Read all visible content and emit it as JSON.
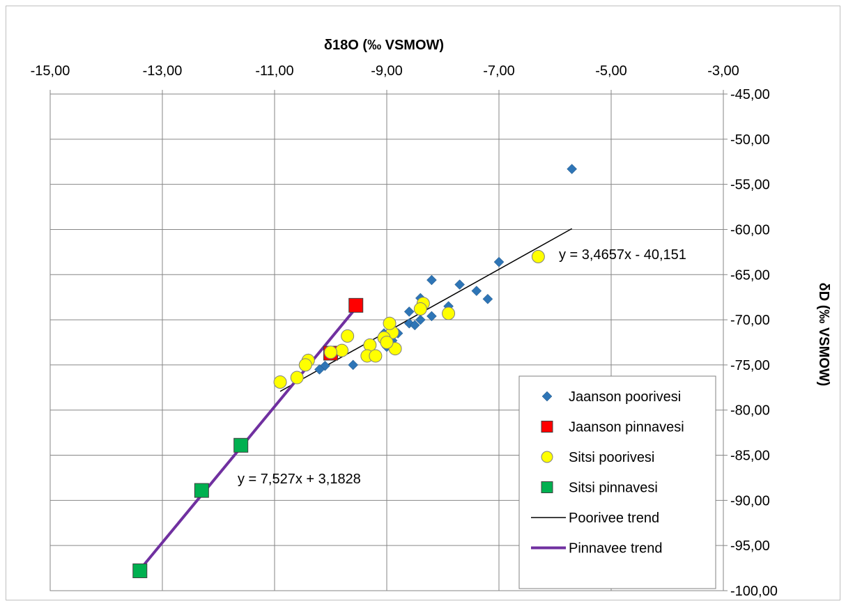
{
  "chart_data": {
    "type": "scatter",
    "title": "",
    "xlabel": "δ18O (‰ VSMOW)",
    "ylabel": "δD (‰ VSMOW)",
    "xlim": [
      -15,
      -3
    ],
    "ylim": [
      -100,
      -45
    ],
    "x_ticks": [
      -15,
      -13,
      -11,
      -9,
      -7,
      -5,
      -3
    ],
    "y_ticks": [
      -45,
      -50,
      -55,
      -60,
      -65,
      -70,
      -75,
      -80,
      -85,
      -90,
      -95,
      -100
    ],
    "x_tick_labels": [
      "-15,00",
      "-13,00",
      "-11,00",
      "-9,00",
      "-7,00",
      "-5,00",
      "-3,00"
    ],
    "y_tick_labels": [
      "-45,00",
      "-50,00",
      "-55,00",
      "-60,00",
      "-65,00",
      "-70,00",
      "-75,00",
      "-80,00",
      "-85,00",
      "-90,00",
      "-95,00",
      "-100,00"
    ],
    "x_axis_position": "top",
    "y_axis_position": "right",
    "grid": true,
    "legend_position": "bottom-right",
    "series": [
      {
        "name": "Jaanson poorivesi",
        "marker": "diamond",
        "color": "#2e75b6",
        "points": [
          [
            -5.7,
            -53.3
          ],
          [
            -7.0,
            -63.6
          ],
          [
            -7.7,
            -66.1
          ],
          [
            -7.4,
            -66.8
          ],
          [
            -7.2,
            -67.7
          ],
          [
            -8.2,
            -65.6
          ],
          [
            -8.4,
            -67.6
          ],
          [
            -7.9,
            -68.5
          ],
          [
            -8.6,
            -69.1
          ],
          [
            -8.4,
            -70.0
          ],
          [
            -8.2,
            -69.6
          ],
          [
            -8.6,
            -70.4
          ],
          [
            -8.5,
            -70.6
          ],
          [
            -8.8,
            -71.5
          ],
          [
            -8.9,
            -72.3
          ],
          [
            -9.0,
            -73.0
          ],
          [
            -9.05,
            -71.5
          ],
          [
            -9.6,
            -75.0
          ],
          [
            -10.1,
            -75.1
          ],
          [
            -10.2,
            -75.5
          ],
          [
            -10.4,
            -74.3
          ],
          [
            -10.9,
            -77.0
          ]
        ]
      },
      {
        "name": "Jaanson pinnavesi",
        "marker": "square",
        "color": "#ff0000",
        "points": [
          [
            -9.55,
            -68.4
          ],
          [
            -10.0,
            -73.7
          ]
        ]
      },
      {
        "name": "Sitsi poorivesi",
        "marker": "circle",
        "color": "#ffff00",
        "points": [
          [
            -6.3,
            -63.0
          ],
          [
            -7.9,
            -69.3
          ],
          [
            -8.35,
            -68.2
          ],
          [
            -8.4,
            -68.8
          ],
          [
            -8.9,
            -71.4
          ],
          [
            -8.95,
            -70.4
          ],
          [
            -9.05,
            -72.0
          ],
          [
            -9.3,
            -72.8
          ],
          [
            -9.35,
            -74.0
          ],
          [
            -9.2,
            -74.0
          ],
          [
            -8.85,
            -73.2
          ],
          [
            -9.7,
            -71.8
          ],
          [
            -9.8,
            -73.4
          ],
          [
            -10.0,
            -73.6
          ],
          [
            -10.4,
            -74.5
          ],
          [
            -10.45,
            -75.0
          ],
          [
            -10.6,
            -76.4
          ],
          [
            -10.9,
            -76.9
          ],
          [
            -9.0,
            -72.5
          ]
        ]
      },
      {
        "name": "Sitsi pinnavesi",
        "marker": "square",
        "color": "#00b050",
        "points": [
          [
            -11.6,
            -83.9
          ],
          [
            -12.3,
            -88.9
          ],
          [
            -13.4,
            -97.8
          ]
        ]
      },
      {
        "name": "Poorivee trend",
        "marker": "line",
        "color": "#000000",
        "equation": "y = 3,4657x - 40,151",
        "slope": 3.4657,
        "intercept": -40.151,
        "x_range": [
          -10.9,
          -5.7
        ]
      },
      {
        "name": "Pinnavee trend",
        "marker": "line",
        "color": "#7030a0",
        "equation": "y = 7,527x + 3,1828",
        "slope": 7.527,
        "intercept": 3.1828,
        "x_range": [
          -13.4,
          -9.55
        ]
      }
    ]
  }
}
